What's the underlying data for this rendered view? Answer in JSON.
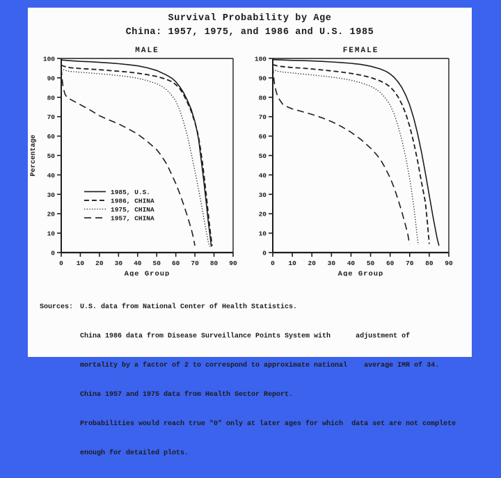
{
  "page": {
    "background": "#3b63ee",
    "paper": "#fcfcfc",
    "ink": "#1d1d1d"
  },
  "title": {
    "line1": "Survival Probability by Age",
    "line2": "China: 1957, 1975, and 1986 and U.S. 1985"
  },
  "chart_data": [
    {
      "type": "line",
      "title": "MALE",
      "xlabel": "Age Group",
      "ylabel": "Percentage",
      "xlim": [
        0,
        90
      ],
      "ylim": [
        0,
        100
      ],
      "xticks": [
        0,
        10,
        20,
        30,
        40,
        50,
        60,
        70,
        80,
        90
      ],
      "yticks": [
        0,
        10,
        20,
        30,
        40,
        50,
        60,
        70,
        80,
        90,
        100
      ],
      "grid": false,
      "legend": true,
      "legend_position": "inside-left-middle",
      "series": [
        {
          "name": "1985, U.S.",
          "style": "solid",
          "points": [
            [
              0,
              99.2
            ],
            [
              5,
              98.8
            ],
            [
              10,
              98.5
            ],
            [
              15,
              98.3
            ],
            [
              20,
              98
            ],
            [
              25,
              97.7
            ],
            [
              30,
              97.3
            ],
            [
              35,
              96.8
            ],
            [
              40,
              96.2
            ],
            [
              45,
              95.2
            ],
            [
              50,
              93.8
            ],
            [
              55,
              91.5
            ],
            [
              58,
              89.8
            ],
            [
              60,
              88
            ],
            [
              62,
              85.5
            ],
            [
              64,
              82.5
            ],
            [
              66,
              78.5
            ],
            [
              68,
              74
            ],
            [
              70,
              67.5
            ],
            [
              71,
              63
            ],
            [
              72,
              58
            ],
            [
              73,
              50
            ],
            [
              74,
              42
            ],
            [
              75,
              34
            ],
            [
              76,
              25
            ],
            [
              77,
              16
            ],
            [
              78,
              8
            ],
            [
              78.6,
              3
            ]
          ]
        },
        {
          "name": "1986, CHINA",
          "style": "dashed",
          "points": [
            [
              0,
              96.5
            ],
            [
              3,
              95.5
            ],
            [
              5,
              95.2
            ],
            [
              10,
              94.8
            ],
            [
              15,
              94.5
            ],
            [
              20,
              94.2
            ],
            [
              25,
              93.8
            ],
            [
              30,
              93.4
            ],
            [
              35,
              93
            ],
            [
              40,
              92.4
            ],
            [
              45,
              91.7
            ],
            [
              50,
              90.7
            ],
            [
              55,
              89.3
            ],
            [
              58,
              88
            ],
            [
              60,
              86.5
            ],
            [
              62,
              84.5
            ],
            [
              64,
              81.5
            ],
            [
              66,
              77.5
            ],
            [
              68,
              73
            ],
            [
              70,
              67
            ],
            [
              71,
              63.5
            ],
            [
              72,
              59
            ],
            [
              73,
              53
            ],
            [
              74,
              46
            ],
            [
              75,
              38
            ],
            [
              76,
              29
            ],
            [
              77,
              20
            ],
            [
              78,
              11
            ],
            [
              79,
              3.5
            ]
          ]
        },
        {
          "name": "1975, CHINA",
          "style": "dotted",
          "points": [
            [
              0,
              95
            ],
            [
              2,
              93.8
            ],
            [
              5,
              93.3
            ],
            [
              10,
              92.9
            ],
            [
              15,
              92.5
            ],
            [
              20,
              92.1
            ],
            [
              25,
              91.7
            ],
            [
              30,
              91.2
            ],
            [
              35,
              90.6
            ],
            [
              40,
              89.8
            ],
            [
              45,
              88.6
            ],
            [
              50,
              87
            ],
            [
              53,
              85.5
            ],
            [
              55,
              84
            ],
            [
              57,
              82
            ],
            [
              59,
              79.5
            ],
            [
              60,
              78
            ],
            [
              62,
              73.5
            ],
            [
              64,
              67.5
            ],
            [
              66,
              60.5
            ],
            [
              68,
              51.5
            ],
            [
              70,
              42
            ],
            [
              71,
              37
            ],
            [
              72,
              32
            ],
            [
              73,
              27
            ],
            [
              74,
              21.5
            ],
            [
              75,
              16
            ],
            [
              76,
              10.5
            ],
            [
              77,
              5.5
            ],
            [
              77.8,
              3
            ]
          ]
        },
        {
          "name": "1957, CHINA",
          "style": "longdash",
          "points": [
            [
              0,
              95
            ],
            [
              0.5,
              89
            ],
            [
              1,
              85
            ],
            [
              2,
              81.5
            ],
            [
              3,
              80
            ],
            [
              5,
              78.8
            ],
            [
              8,
              77.2
            ],
            [
              10,
              76.2
            ],
            [
              15,
              73.5
            ],
            [
              20,
              70.5
            ],
            [
              25,
              68.3
            ],
            [
              30,
              66.3
            ],
            [
              35,
              63.8
            ],
            [
              40,
              61
            ],
            [
              45,
              57.3
            ],
            [
              50,
              53
            ],
            [
              52,
              50.5
            ],
            [
              55,
              46
            ],
            [
              57,
              42
            ],
            [
              60,
              35.5
            ],
            [
              62,
              30.5
            ],
            [
              64,
              25
            ],
            [
              66,
              19
            ],
            [
              68,
              12.5
            ],
            [
              69,
              8.5
            ],
            [
              70,
              3.5
            ]
          ]
        }
      ]
    },
    {
      "type": "line",
      "title": "FEMALE",
      "xlabel": "Age Group",
      "ylabel": "",
      "xlim": [
        0,
        90
      ],
      "ylim": [
        0,
        100
      ],
      "xticks": [
        0,
        10,
        20,
        30,
        40,
        50,
        60,
        70,
        80,
        90
      ],
      "yticks": [
        0,
        10,
        20,
        30,
        40,
        50,
        60,
        70,
        80,
        90,
        100
      ],
      "grid": false,
      "legend": false,
      "series": [
        {
          "name": "1985, U.S.",
          "style": "solid",
          "points": [
            [
              0,
              99.4
            ],
            [
              5,
              99.2
            ],
            [
              10,
              99
            ],
            [
              15,
              98.9
            ],
            [
              20,
              98.7
            ],
            [
              25,
              98.5
            ],
            [
              30,
              98.2
            ],
            [
              35,
              97.9
            ],
            [
              40,
              97.5
            ],
            [
              45,
              96.9
            ],
            [
              50,
              96
            ],
            [
              55,
              94.6
            ],
            [
              58,
              93.3
            ],
            [
              60,
              92
            ],
            [
              62,
              90.3
            ],
            [
              64,
              88
            ],
            [
              66,
              85
            ],
            [
              68,
              81
            ],
            [
              70,
              76
            ],
            [
              72,
              69.5
            ],
            [
              74,
              61.5
            ],
            [
              76,
              52
            ],
            [
              78,
              41
            ],
            [
              80,
              29.5
            ],
            [
              82,
              18
            ],
            [
              84,
              7.5
            ],
            [
              85,
              3.5
            ]
          ]
        },
        {
          "name": "1986, CHINA",
          "style": "dashed",
          "points": [
            [
              0,
              96.8
            ],
            [
              3,
              96
            ],
            [
              5,
              95.8
            ],
            [
              10,
              95.3
            ],
            [
              15,
              95
            ],
            [
              20,
              94.6
            ],
            [
              25,
              94.1
            ],
            [
              30,
              93.6
            ],
            [
              35,
              93
            ],
            [
              40,
              92.3
            ],
            [
              45,
              91.4
            ],
            [
              50,
              90.2
            ],
            [
              55,
              88.4
            ],
            [
              58,
              86.8
            ],
            [
              60,
              85.3
            ],
            [
              62,
              83.2
            ],
            [
              64,
              80.3
            ],
            [
              66,
              76.5
            ],
            [
              68,
              71.5
            ],
            [
              70,
              65
            ],
            [
              72,
              57
            ],
            [
              74,
              47.5
            ],
            [
              76,
              36.5
            ],
            [
              78,
              26
            ],
            [
              79,
              16
            ],
            [
              80,
              4.5
            ]
          ]
        },
        {
          "name": "1975, CHINA",
          "style": "dotted",
          "points": [
            [
              0,
              94.5
            ],
            [
              2,
              93.5
            ],
            [
              5,
              93
            ],
            [
              10,
              92.5
            ],
            [
              15,
              92
            ],
            [
              20,
              91.5
            ],
            [
              25,
              91
            ],
            [
              30,
              90.4
            ],
            [
              35,
              89.7
            ],
            [
              40,
              88.8
            ],
            [
              45,
              87.5
            ],
            [
              50,
              85.7
            ],
            [
              53,
              84
            ],
            [
              55,
              82.5
            ],
            [
              57,
              80.3
            ],
            [
              59,
              77.5
            ],
            [
              60,
              76
            ],
            [
              62,
              71.5
            ],
            [
              64,
              65.5
            ],
            [
              66,
              58
            ],
            [
              68,
              49
            ],
            [
              70,
              38
            ],
            [
              71,
              31.5
            ],
            [
              72,
              24.5
            ],
            [
              73,
              16
            ],
            [
              74,
              7
            ],
            [
              74.4,
              4
            ]
          ]
        },
        {
          "name": "1957, CHINA",
          "style": "longdash",
          "points": [
            [
              0,
              96
            ],
            [
              0.5,
              90
            ],
            [
              1,
              86
            ],
            [
              2,
              82
            ],
            [
              3,
              79.5
            ],
            [
              5,
              76.5
            ],
            [
              8,
              74.8
            ],
            [
              10,
              74
            ],
            [
              15,
              72.6
            ],
            [
              20,
              71.2
            ],
            [
              25,
              69.5
            ],
            [
              30,
              67.5
            ],
            [
              35,
              65
            ],
            [
              40,
              62
            ],
            [
              45,
              58.3
            ],
            [
              50,
              53.8
            ],
            [
              53,
              50.5
            ],
            [
              55,
              48
            ],
            [
              57,
              44.5
            ],
            [
              60,
              38.5
            ],
            [
              62,
              33.5
            ],
            [
              64,
              27.5
            ],
            [
              66,
              21
            ],
            [
              68,
              13.5
            ],
            [
              69,
              9.5
            ],
            [
              70,
              4
            ]
          ]
        }
      ]
    }
  ],
  "sources": {
    "label": "Sources:",
    "lines": [
      "U.S. data from National Center of Health Statistics.",
      "China 1986 data from Disease Surveillance Points System with      adjustment of",
      "mortality by a factor of 2 to correspond to approximate national    average IMR of 34.",
      "China 1957 and 1975 data from Health Sector Report.",
      "Probabilities would reach true \"0\" only at later ages for which  data set are not complete",
      "enough for detailed plots."
    ]
  }
}
